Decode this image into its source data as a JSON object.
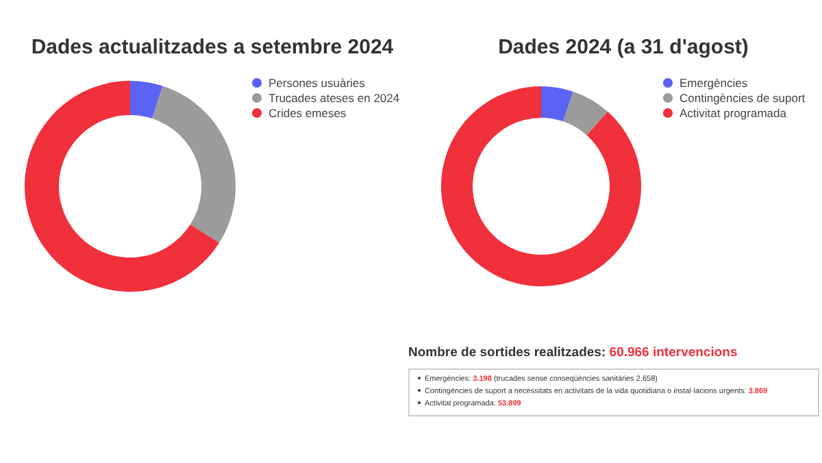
{
  "chart_data": [
    {
      "type": "donut",
      "title": "Dades actualitzades a setembre 2024",
      "categories": [
        "Persones usuàries",
        "Trucades ateses en 2024",
        "Crides emeses"
      ],
      "values": [
        5,
        29,
        66
      ],
      "colors": [
        "#5b63f5",
        "#9b9b9b",
        "#f0303a"
      ],
      "legend": "right"
    },
    {
      "type": "donut",
      "title": "Dades 2024 (a 31 d'agost)",
      "categories": [
        "Emergències",
        "Contingències de suport",
        "Activitat programada"
      ],
      "values": [
        5.2,
        6.4,
        88.4
      ],
      "colors": [
        "#5b63f5",
        "#9b9b9b",
        "#f0303a"
      ],
      "legend": "right",
      "annotations": [
        "Nombre de sortides realitzades: 60.966 intervencions",
        "Emergències: 3.198 (trucades sense conseqüències sanitàries 2.658)",
        "Contingències de suport a necessitats en activitats de la vida quotidiana o instal·lacions urgents: 3.869",
        "Activitat programada: 53.899"
      ]
    }
  ]
}
